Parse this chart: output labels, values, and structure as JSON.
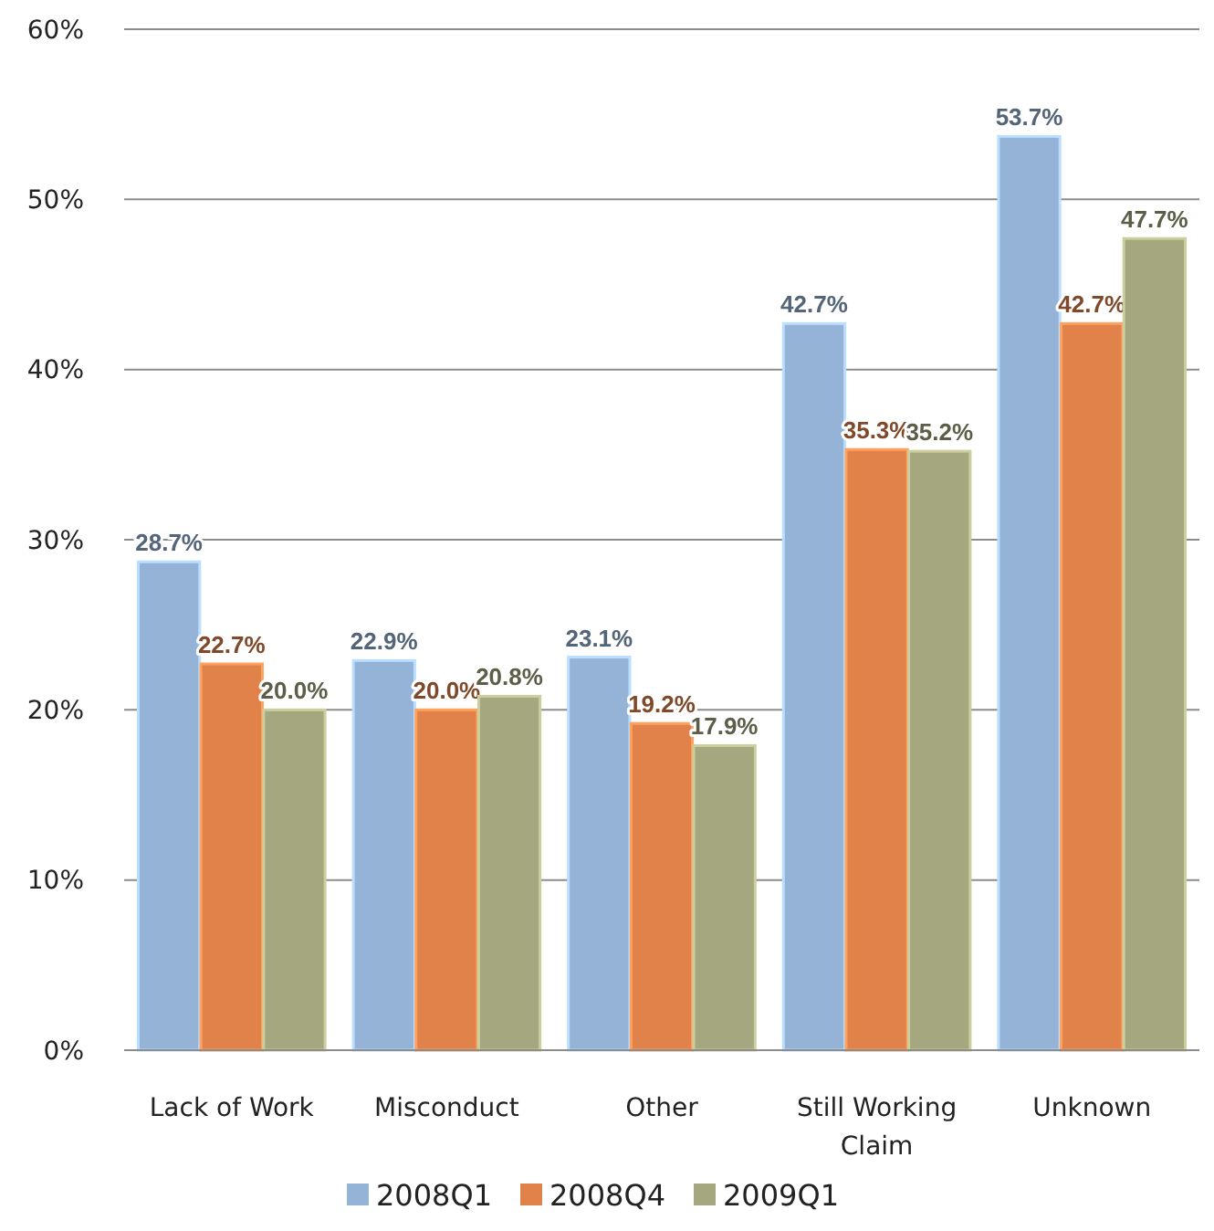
{
  "chart_data": {
    "type": "bar",
    "categories": [
      "Lack of Work",
      "Misconduct",
      "Other",
      "Still Working Claim",
      "Unknown"
    ],
    "series": [
      {
        "name": "2008Q1",
        "color": "#95b3d7",
        "values": [
          28.7,
          22.9,
          23.1,
          42.7,
          53.7
        ],
        "value_labels": [
          "28.7%",
          "22.9%",
          "23.1%",
          "42.7%",
          "53.7%"
        ]
      },
      {
        "name": "2008Q4",
        "color": "#e0824a",
        "values": [
          22.7,
          20.0,
          19.2,
          35.3,
          42.7
        ],
        "value_labels": [
          "22.7%",
          "20.0%",
          "19.2%",
          "35.3%",
          "42.7%"
        ]
      },
      {
        "name": "2009Q1",
        "color": "#a5a77f",
        "values": [
          20.0,
          20.8,
          17.9,
          35.2,
          47.7
        ],
        "value_labels": [
          "20.0%",
          "20.8%",
          "17.9%",
          "35.2%",
          "47.7%"
        ]
      }
    ],
    "ylim": [
      0,
      60
    ],
    "yticks": [
      {
        "value": 0,
        "label": "0%"
      },
      {
        "value": 10,
        "label": "10%"
      },
      {
        "value": 20,
        "label": "20%"
      },
      {
        "value": 30,
        "label": "30%"
      },
      {
        "value": 40,
        "label": "40%"
      },
      {
        "value": 50,
        "label": "50%"
      },
      {
        "value": 60,
        "label": "60%"
      }
    ],
    "grid": "y",
    "legend": "bottom"
  }
}
